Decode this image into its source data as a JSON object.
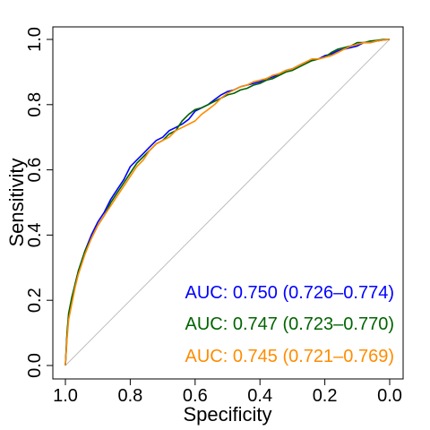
{
  "chart_data": {
    "type": "line",
    "title": "",
    "xlabel": "Specificity",
    "ylabel": "Sensitivity",
    "xlim": [
      1.0,
      0.0
    ],
    "ylim": [
      0.0,
      1.0
    ],
    "x_reversed": true,
    "xticks": [
      "1.0",
      "0.8",
      "0.6",
      "0.4",
      "0.2",
      "0.0"
    ],
    "yticks": [
      "0.0",
      "0.2",
      "0.4",
      "0.6",
      "0.8",
      "1.0"
    ],
    "grid": false,
    "reference_line": {
      "from": [
        1.0,
        0.0
      ],
      "to": [
        0.0,
        1.0
      ],
      "color": "#bebebe"
    },
    "series": [
      {
        "color": "#0000ff",
        "label": "AUC: 0.750 (0.726–0.774)",
        "x": [
          1.0,
          0.995,
          0.99,
          0.98,
          0.97,
          0.96,
          0.95,
          0.94,
          0.92,
          0.9,
          0.88,
          0.86,
          0.84,
          0.82,
          0.8,
          0.78,
          0.76,
          0.74,
          0.72,
          0.7,
          0.68,
          0.66,
          0.64,
          0.62,
          0.6,
          0.58,
          0.56,
          0.54,
          0.52,
          0.5,
          0.48,
          0.46,
          0.44,
          0.42,
          0.4,
          0.38,
          0.36,
          0.34,
          0.32,
          0.3,
          0.28,
          0.26,
          0.24,
          0.22,
          0.2,
          0.18,
          0.16,
          0.14,
          0.12,
          0.1,
          0.08,
          0.06,
          0.04,
          0.02,
          0.0
        ],
        "y": [
          0.0,
          0.09,
          0.15,
          0.2,
          0.25,
          0.29,
          0.32,
          0.35,
          0.4,
          0.44,
          0.47,
          0.51,
          0.54,
          0.57,
          0.61,
          0.63,
          0.65,
          0.67,
          0.69,
          0.7,
          0.72,
          0.73,
          0.74,
          0.755,
          0.78,
          0.79,
          0.8,
          0.815,
          0.83,
          0.84,
          0.845,
          0.855,
          0.86,
          0.865,
          0.87,
          0.88,
          0.885,
          0.895,
          0.905,
          0.91,
          0.92,
          0.93,
          0.935,
          0.94,
          0.95,
          0.955,
          0.965,
          0.97,
          0.975,
          0.98,
          0.99,
          0.99,
          0.995,
          0.998,
          1.0
        ]
      },
      {
        "color": "#006400",
        "label": "AUC: 0.747 (0.723–0.770)",
        "x": [
          1.0,
          0.995,
          0.99,
          0.98,
          0.97,
          0.96,
          0.95,
          0.94,
          0.92,
          0.9,
          0.88,
          0.86,
          0.84,
          0.82,
          0.8,
          0.78,
          0.76,
          0.74,
          0.72,
          0.7,
          0.68,
          0.66,
          0.64,
          0.62,
          0.6,
          0.58,
          0.56,
          0.54,
          0.52,
          0.5,
          0.48,
          0.46,
          0.44,
          0.42,
          0.4,
          0.38,
          0.36,
          0.34,
          0.32,
          0.3,
          0.28,
          0.26,
          0.24,
          0.22,
          0.2,
          0.18,
          0.16,
          0.14,
          0.12,
          0.1,
          0.08,
          0.06,
          0.04,
          0.02,
          0.0
        ],
        "y": [
          0.0,
          0.1,
          0.16,
          0.21,
          0.25,
          0.29,
          0.32,
          0.35,
          0.39,
          0.43,
          0.46,
          0.5,
          0.53,
          0.56,
          0.59,
          0.62,
          0.64,
          0.66,
          0.68,
          0.69,
          0.71,
          0.72,
          0.75,
          0.77,
          0.785,
          0.79,
          0.8,
          0.81,
          0.82,
          0.83,
          0.835,
          0.845,
          0.85,
          0.86,
          0.865,
          0.875,
          0.88,
          0.89,
          0.9,
          0.905,
          0.915,
          0.925,
          0.935,
          0.94,
          0.945,
          0.96,
          0.97,
          0.975,
          0.98,
          0.99,
          0.99,
          0.995,
          0.997,
          1.0,
          1.0
        ]
      },
      {
        "color": "#ff8c00",
        "label": "AUC: 0.745 (0.721–0.769)",
        "x": [
          1.0,
          0.995,
          0.99,
          0.98,
          0.97,
          0.96,
          0.95,
          0.94,
          0.92,
          0.9,
          0.88,
          0.86,
          0.84,
          0.82,
          0.8,
          0.78,
          0.76,
          0.74,
          0.72,
          0.7,
          0.68,
          0.66,
          0.64,
          0.62,
          0.6,
          0.58,
          0.56,
          0.54,
          0.52,
          0.5,
          0.48,
          0.46,
          0.44,
          0.42,
          0.4,
          0.38,
          0.36,
          0.34,
          0.32,
          0.3,
          0.28,
          0.26,
          0.24,
          0.22,
          0.2,
          0.18,
          0.16,
          0.14,
          0.12,
          0.1,
          0.08,
          0.06,
          0.04,
          0.02,
          0.0
        ],
        "y": [
          0.0,
          0.08,
          0.14,
          0.19,
          0.24,
          0.28,
          0.31,
          0.34,
          0.39,
          0.43,
          0.46,
          0.49,
          0.52,
          0.55,
          0.58,
          0.61,
          0.63,
          0.66,
          0.68,
          0.69,
          0.7,
          0.72,
          0.73,
          0.74,
          0.75,
          0.77,
          0.785,
          0.8,
          0.82,
          0.835,
          0.845,
          0.855,
          0.86,
          0.87,
          0.875,
          0.88,
          0.89,
          0.895,
          0.905,
          0.91,
          0.92,
          0.93,
          0.94,
          0.94,
          0.945,
          0.95,
          0.96,
          0.97,
          0.98,
          0.985,
          0.99,
          0.99,
          0.995,
          0.998,
          1.0
        ]
      }
    ]
  }
}
